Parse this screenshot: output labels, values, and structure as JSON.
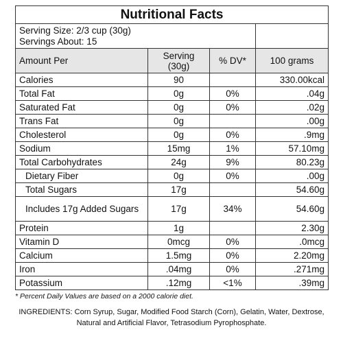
{
  "header": {
    "title": "Nutritional Facts"
  },
  "serving": {
    "size": "Serving Size: 2/3 cup (30g)",
    "servings": "Servings About: 15"
  },
  "table": {
    "columns": [
      "Amount Per",
      "Serving (30g)",
      "% DV*",
      "100 grams"
    ],
    "rows": [
      {
        "cells": [
          "Calories",
          "90",
          null,
          "330.00kcal"
        ]
      },
      {
        "cells": [
          "Total Fat",
          "0g",
          "0%",
          ".04g"
        ]
      },
      {
        "cells": [
          "Saturated Fat",
          "0g",
          "0%",
          ".02g"
        ]
      },
      {
        "cells": [
          "Trans Fat",
          "0g",
          null,
          ".00g"
        ]
      },
      {
        "cells": [
          "Cholesterol",
          "0g",
          "0%",
          ".9mg"
        ]
      },
      {
        "cells": [
          "Sodium",
          "15mg",
          "1%",
          "57.10mg"
        ]
      },
      {
        "cells": [
          "Total Carbohydrates",
          "24g",
          "9%",
          "80.23g"
        ]
      },
      {
        "cells": [
          "Dietary Fiber",
          "0g",
          "0%",
          ".00g"
        ],
        "indent": true
      },
      {
        "cells": [
          "Total Sugars",
          "17g",
          null,
          "54.60g"
        ],
        "indent": true
      },
      {
        "cells": [
          "Includes 17g Added Sugars",
          "17g",
          "34%",
          "54.60g"
        ],
        "indent": true
      },
      {
        "cells": [
          "Protein",
          "1g",
          null,
          "2.30g"
        ]
      },
      {
        "cells": [
          "Vitamin D",
          "0mcg",
          "0%",
          ".0mcg"
        ]
      },
      {
        "cells": [
          "Calcium",
          "1.5mg",
          "0%",
          "2.20mg"
        ]
      },
      {
        "cells": [
          "Iron",
          ".04mg",
          "0%",
          ".271mg"
        ]
      },
      {
        "cells": [
          "Potassium",
          ".12mg",
          "<1%",
          ".39mg"
        ]
      }
    ]
  },
  "footnote": "* Percent Daily Values are based on a 2000 calorie diet.",
  "ingredients": "INGREDIENTS: Corn Syrup, Sugar, Modified Food Starch (Corn), Gelatin, Water, Dextrose, Natural and Artificial Flavor, Tetrasodium Pyrophosphate."
}
